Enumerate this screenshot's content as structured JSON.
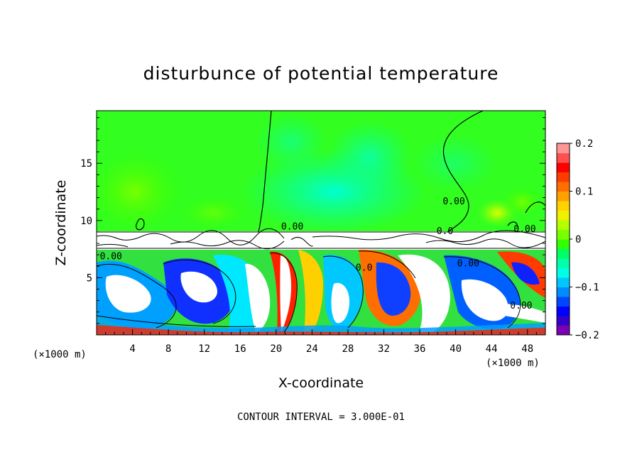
{
  "chart_data": {
    "type": "heatmap",
    "title": "disturbunce of potential temperature",
    "xlabel": "X-coordinate",
    "ylabel": "Z-coordinate",
    "x_unit_left": "(×1000 m)",
    "x_unit_right": "(×1000 m)",
    "xlim": [
      0,
      50
    ],
    "ylim": [
      0,
      19.6
    ],
    "x_ticks": [
      4,
      8,
      12,
      16,
      20,
      24,
      28,
      32,
      36,
      40,
      44,
      48
    ],
    "y_ticks": [
      5,
      10,
      15
    ],
    "colorbar": {
      "range": [
        -0.2,
        0.2
      ],
      "tick_labels": [
        "0.2",
        "0.1",
        "0",
        "−0.1",
        "−0.2"
      ],
      "tick_values": [
        0.2,
        0.1,
        0,
        -0.1,
        -0.2
      ],
      "colors": [
        "#7b00b4",
        "#3200c8",
        "#0000ff",
        "#0046ff",
        "#008cff",
        "#00c8ff",
        "#00ffe6",
        "#00ffaa",
        "#00ff64",
        "#32ff00",
        "#78ff00",
        "#b4ff00",
        "#f0f000",
        "#ffd200",
        "#ffa000",
        "#ff6e00",
        "#ff3c00",
        "#ff0000",
        "#ff5050",
        "#ff9696"
      ]
    },
    "contour_labels": [
      {
        "text": "0.00",
        "x": 21.8,
        "z": 9.2
      },
      {
        "text": "0.00",
        "x": 39.8,
        "z": 11.4
      },
      {
        "text": "0.00",
        "x": 47.7,
        "z": 9.0
      },
      {
        "text": "0.00",
        "x": 1.6,
        "z": 6.6
      },
      {
        "text": "0.00",
        "x": 41.4,
        "z": 6.0
      },
      {
        "text": "0.00",
        "x": 47.3,
        "z": 2.3
      },
      {
        "text": "0.0",
        "x": 29.8,
        "z": 5.6
      },
      {
        "text": "0.0",
        "x": 38.8,
        "z": 8.8
      }
    ],
    "footer": "CONTOUR INTERVAL = 3.000E-01"
  }
}
